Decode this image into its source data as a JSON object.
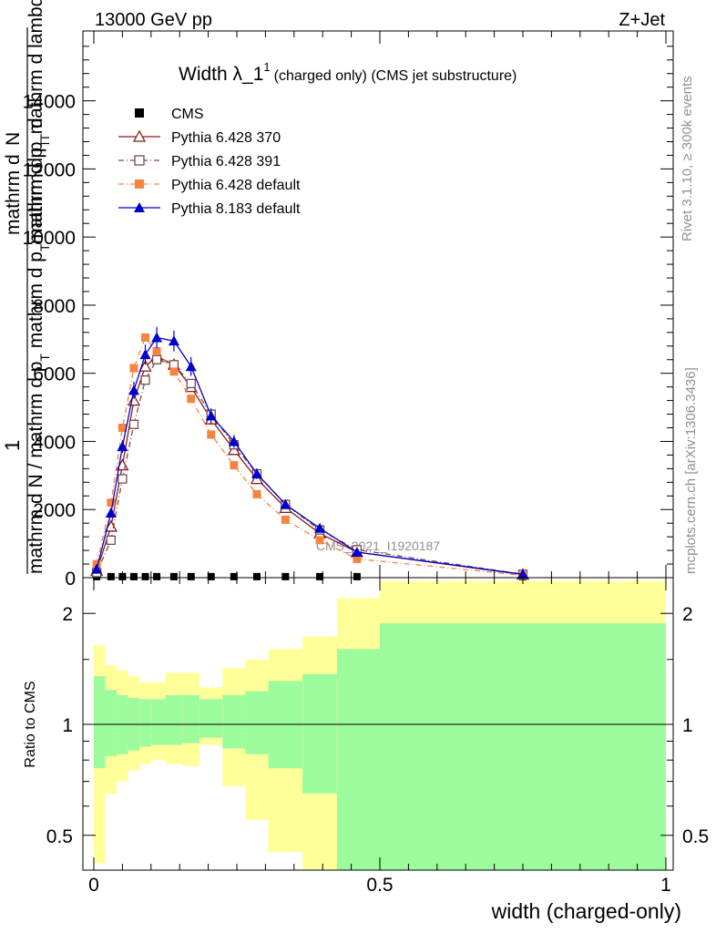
{
  "header": {
    "energy": "13000 GeV pp",
    "process": "Z+Jet"
  },
  "side_labels": {
    "rivet": "Rivet 3.1.10, ≥ 300k events",
    "mcplots": "mcplots.cern.ch [arXiv:1306.3436]"
  },
  "colors": {
    "cms": "#000000",
    "p370": "#8b1a1a",
    "p391": "#7a4a4a",
    "p6def": "#f58442",
    "p8def": "#0000cc",
    "band_inner": "#9cfb9c",
    "band_outer": "#ffff99"
  },
  "chart_data": [
    {
      "type": "line",
      "title_main": "Width λ_1",
      "title_sup": "1",
      "title_tail": "(charged only) (CMS jet substructure)",
      "ylabel_top": "1",
      "ylabel_top_num": "mathrm d",
      "ylabel_top_n": "N",
      "ylabel_top_den": "mathrm d p",
      "ylabel_top_den_sub": "T",
      "ylabel_top_den_tail": " mathrm d lambda",
      "ylabel_main": "mathrm d N / mathrm d p",
      "ylabel_main_sub": "T",
      "ylabel_main_tail": " mathrm d p",
      "ylabel_main_sub2": "T",
      "ylabel_main_tail2": " mathrm d p",
      "ylabel_main_sub3": "T",
      "ylabel_main_tail3": " d",
      "ylabel_main_lambda": "mathrm d N",
      "analysis": "CMS_2021_I1920187",
      "xlim": [
        -0.02,
        1.02
      ],
      "ylim": [
        0,
        16000
      ],
      "yticks": [
        0,
        2000,
        4000,
        6000,
        8000,
        10000,
        12000,
        14000
      ],
      "ytick_labels": [
        "0",
        "2000",
        "4000",
        "6000",
        "8000",
        "10000",
        "12000",
        "14000"
      ],
      "legend": [
        "CMS",
        "Pythia 6.428 370",
        "Pythia 6.428 391",
        "Pythia 6.428 default",
        "Pythia 8.183 default"
      ],
      "x": [
        0.005,
        0.03,
        0.05,
        0.07,
        0.09,
        0.11,
        0.14,
        0.17,
        0.205,
        0.245,
        0.285,
        0.335,
        0.395,
        0.46,
        0.75
      ],
      "series": [
        {
          "name": "CMS",
          "values": [
            30,
            30,
            30,
            30,
            30,
            30,
            30,
            30,
            30,
            30,
            30,
            30,
            30,
            30,
            30
          ]
        },
        {
          "name": "Pythia 6.428 370",
          "values": [
            200,
            1500,
            3300,
            5200,
            6200,
            6500,
            6250,
            5600,
            4650,
            3750,
            2900,
            2050,
            1300,
            750,
            90
          ]
        },
        {
          "name": "Pythia 6.428 391",
          "values": [
            150,
            1100,
            2900,
            4500,
            5800,
            6400,
            6250,
            5700,
            4800,
            3900,
            3050,
            2150,
            1400,
            820,
            100
          ]
        },
        {
          "name": "Pythia 6.428 default",
          "values": [
            400,
            2200,
            4400,
            6150,
            7050,
            6650,
            6050,
            5250,
            4200,
            3300,
            2450,
            1700,
            1100,
            550,
            70
          ]
        },
        {
          "name": "Pythia 8.183 default",
          "values": [
            250,
            1900,
            3850,
            5500,
            6550,
            7050,
            6950,
            6200,
            4750,
            4000,
            3050,
            2150,
            1450,
            750,
            100
          ]
        }
      ]
    },
    {
      "type": "area",
      "ylabel": "Ratio to CMS",
      "xlabel": "width (charged-only)",
      "xlim": [
        -0.02,
        1.02
      ],
      "ylim": [
        0.4,
        2.3
      ],
      "xticks": [
        0,
        0.5,
        1
      ],
      "xtick_labels": [
        "0",
        "0.5",
        "1"
      ],
      "yticks": [
        0.5,
        1,
        2
      ],
      "ytick_labels": [
        "0.5",
        "1",
        "2"
      ],
      "bin_edges": [
        0,
        0.02,
        0.04,
        0.06,
        0.08,
        0.1,
        0.125,
        0.155,
        0.185,
        0.225,
        0.265,
        0.305,
        0.365,
        0.425,
        0.5,
        1.0
      ],
      "inner_low": [
        0.76,
        0.82,
        0.83,
        0.85,
        0.87,
        0.88,
        0.88,
        0.89,
        0.92,
        0.86,
        0.83,
        0.76,
        0.65,
        0.2,
        0.2,
        0.87
      ],
      "inner_high": [
        1.35,
        1.24,
        1.2,
        1.18,
        1.17,
        1.17,
        1.2,
        1.2,
        1.17,
        1.2,
        1.23,
        1.31,
        1.37,
        1.6,
        1.88,
        1.22
      ],
      "outer_low": [
        0.42,
        0.65,
        0.7,
        0.75,
        0.78,
        0.8,
        0.78,
        0.77,
        0.88,
        0.68,
        0.55,
        0.45,
        0.4,
        0.2,
        0.2,
        0.7
      ],
      "outer_high": [
        1.64,
        1.45,
        1.4,
        1.35,
        1.3,
        1.3,
        1.38,
        1.38,
        1.26,
        1.42,
        1.5,
        1.6,
        1.73,
        2.2,
        2.45,
        1.44
      ]
    }
  ]
}
